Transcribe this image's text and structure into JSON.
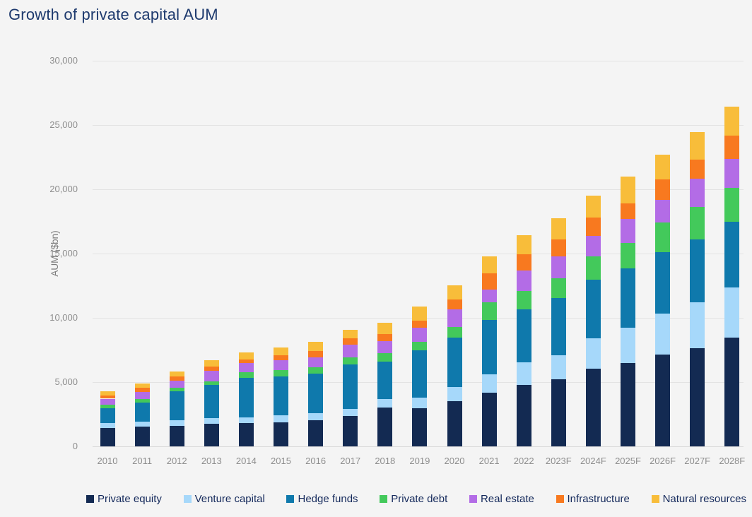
{
  "page": {
    "title": "Growth of private capital AUM"
  },
  "chart_data": {
    "type": "bar",
    "stacked": true,
    "title": "Growth of private capital AUM",
    "ylabel": "AUM ($bn)",
    "xlabel": "",
    "ylim": [
      0,
      30000
    ],
    "ytick_interval": 5000,
    "yticks": [
      {
        "value": 30000,
        "label": "30,000"
      },
      {
        "value": 25000,
        "label": "25,000"
      },
      {
        "value": 20000,
        "label": "20,000"
      },
      {
        "value": 15000,
        "label": "15,000"
      },
      {
        "value": 10000,
        "label": "10,000"
      },
      {
        "value": 5000,
        "label": "5,000"
      },
      {
        "value": 0,
        "label": "0"
      }
    ],
    "grid": "horizontal",
    "legend_position": "bottom",
    "categories": [
      "2010",
      "2011",
      "2012",
      "2013",
      "2014",
      "2015",
      "2016",
      "2017",
      "2018",
      "2019",
      "2020",
      "2021",
      "2022",
      "2023F",
      "2024F",
      "2025F",
      "2026F",
      "2027F",
      "2028F"
    ],
    "series": [
      {
        "name": "Private equity",
        "color": "#132a52",
        "values": [
          1450,
          1540,
          1610,
          1760,
          1800,
          1850,
          2030,
          2350,
          3040,
          2990,
          3530,
          4180,
          4780,
          5240,
          6060,
          6490,
          7160,
          7660,
          8480
        ]
      },
      {
        "name": "Venture capital",
        "color": "#a6d8fa",
        "values": [
          370,
          370,
          420,
          420,
          460,
          550,
          550,
          550,
          640,
          790,
          1070,
          1430,
          1780,
          1840,
          2330,
          2740,
          3150,
          3540,
          3900
        ]
      },
      {
        "name": "Hedge funds",
        "color": "#0f79ac",
        "values": [
          1130,
          1500,
          2240,
          2580,
          3070,
          3020,
          3060,
          3480,
          2900,
          3690,
          3880,
          4250,
          4120,
          4480,
          4580,
          4620,
          4820,
          4890,
          5080
        ]
      },
      {
        "name": "Private debt",
        "color": "#43c95b",
        "values": [
          270,
          280,
          280,
          300,
          460,
          500,
          500,
          550,
          680,
          640,
          820,
          1340,
          1430,
          1520,
          1830,
          1980,
          2290,
          2560,
          2650
        ]
      },
      {
        "name": "Real estate",
        "color": "#b36ce6",
        "values": [
          490,
          550,
          570,
          820,
          680,
          790,
          790,
          970,
          920,
          1100,
          1370,
          1010,
          1560,
          1720,
          1580,
          1870,
          1740,
          2160,
          2250
        ]
      },
      {
        "name": "Infrastructure",
        "color": "#f8791f",
        "values": [
          270,
          310,
          320,
          350,
          290,
          370,
          490,
          490,
          550,
          550,
          740,
          1240,
          1280,
          1290,
          1410,
          1200,
          1590,
          1500,
          1800
        ]
      },
      {
        "name": "Natural resources",
        "color": "#f8bd3a",
        "values": [
          330,
          330,
          400,
          500,
          550,
          600,
          690,
          660,
          910,
          1100,
          1120,
          1320,
          1460,
          1660,
          1730,
          2100,
          1930,
          2160,
          2270
        ]
      }
    ],
    "totals": [
      4310,
      4880,
      5840,
      6730,
      7310,
      7680,
      8110,
      9050,
      9640,
      10860,
      12530,
      14770,
      16410,
      17750,
      19520,
      21000,
      22680,
      24470,
      26430
    ]
  }
}
